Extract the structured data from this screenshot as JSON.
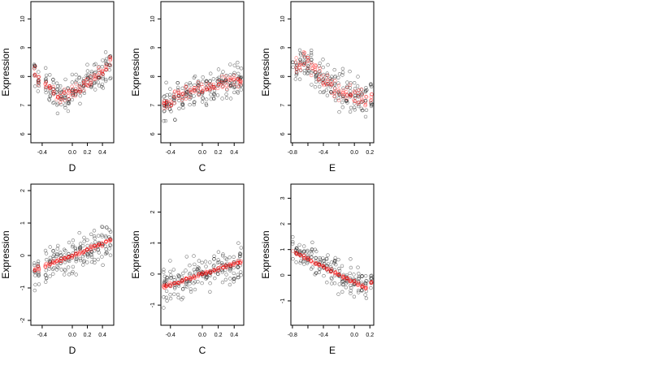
{
  "chart_data": [
    {
      "type": "scatter",
      "xlabel": "D",
      "ylabel": "Expression",
      "xlim": [
        -0.55,
        0.55
      ],
      "ylim": [
        5.7,
        10.6
      ],
      "xticks": [
        -0.4,
        0.0,
        0.2,
        0.4
      ],
      "xtick_labels": [
        "-0.4",
        "0.0",
        "0.2",
        "0.4"
      ],
      "yticks": [
        6,
        7,
        8,
        9,
        10
      ],
      "ytick_labels": [
        "6",
        "7",
        "8",
        "9",
        "10"
      ],
      "observed": {
        "color": "#000000",
        "x_values": [
          -0.5,
          -0.45,
          -0.35,
          -0.3,
          -0.25,
          -0.2,
          -0.15,
          -0.1,
          -0.05,
          0.0,
          0.05,
          0.1,
          0.15,
          0.2,
          0.25,
          0.3,
          0.35,
          0.4,
          0.45,
          0.5
        ],
        "centers": [
          8.1,
          7.9,
          7.7,
          7.6,
          7.5,
          7.3,
          7.3,
          7.3,
          7.4,
          7.5,
          7.6,
          7.6,
          7.7,
          7.8,
          7.9,
          8.0,
          8.1,
          8.2,
          8.3,
          8.5
        ],
        "spread": 0.75
      },
      "fitted": {
        "color": "#ff0000",
        "x_values": [
          -0.5,
          -0.45,
          -0.35,
          -0.3,
          -0.25,
          -0.2,
          -0.15,
          -0.1,
          -0.05,
          0.0,
          0.05,
          0.1,
          0.15,
          0.2,
          0.25,
          0.3,
          0.35,
          0.4,
          0.45,
          0.5
        ],
        "centers": [
          8.1,
          7.9,
          7.7,
          7.6,
          7.5,
          7.3,
          7.3,
          7.3,
          7.4,
          7.5,
          7.6,
          7.6,
          7.7,
          7.8,
          7.9,
          8.0,
          8.1,
          8.2,
          8.3,
          8.5
        ],
        "spread": 0.35
      }
    },
    {
      "type": "scatter",
      "xlabel": "C",
      "ylabel": "Expression",
      "xlim": [
        -0.52,
        0.52
      ],
      "ylim": [
        5.7,
        10.6
      ],
      "xticks": [
        -0.4,
        0.0,
        0.2,
        0.4
      ],
      "xtick_labels": [
        "-0.4",
        "0.0",
        "0.2",
        "0.4"
      ],
      "yticks": [
        6,
        7,
        8,
        9,
        10
      ],
      "ytick_labels": [
        "6",
        "7",
        "8",
        "9",
        "10"
      ],
      "observed": {
        "color": "#000000",
        "x_values": [
          -0.48,
          -0.45,
          -0.4,
          -0.35,
          -0.3,
          -0.25,
          -0.2,
          -0.15,
          -0.1,
          -0.05,
          0.0,
          0.05,
          0.1,
          0.15,
          0.2,
          0.25,
          0.3,
          0.35,
          0.4,
          0.45,
          0.48
        ],
        "centers": [
          7.0,
          7.05,
          7.1,
          7.2,
          7.3,
          7.35,
          7.4,
          7.45,
          7.5,
          7.5,
          7.55,
          7.6,
          7.6,
          7.65,
          7.7,
          7.7,
          7.75,
          7.8,
          7.85,
          7.9,
          7.9
        ],
        "spread": 0.8
      },
      "fitted": {
        "color": "#ff0000",
        "x_values": [
          -0.48,
          -0.45,
          -0.4,
          -0.35,
          -0.3,
          -0.25,
          -0.2,
          -0.15,
          -0.1,
          -0.05,
          0.0,
          0.05,
          0.1,
          0.15,
          0.2,
          0.25,
          0.3,
          0.35,
          0.4,
          0.45,
          0.48
        ],
        "centers": [
          7.0,
          7.05,
          7.1,
          7.2,
          7.3,
          7.35,
          7.4,
          7.45,
          7.5,
          7.5,
          7.55,
          7.6,
          7.6,
          7.65,
          7.7,
          7.7,
          7.75,
          7.8,
          7.85,
          7.9,
          7.9
        ],
        "spread": 0.35
      }
    },
    {
      "type": "scatter",
      "xlabel": "E",
      "ylabel": "Expression",
      "xlim": [
        -0.82,
        0.25
      ],
      "ylim": [
        5.7,
        10.6
      ],
      "xticks": [
        -0.8,
        -0.6,
        -0.4,
        -0.2,
        0.0,
        0.2
      ],
      "xtick_labels": [
        "-0.8",
        "",
        "-0.4",
        "",
        "0.0",
        "0.2"
      ],
      "yticks": [
        6,
        7,
        8,
        9,
        10
      ],
      "ytick_labels": [
        "6",
        "7",
        "8",
        "9",
        "10"
      ],
      "observed": {
        "color": "#000000",
        "x_values": [
          -0.8,
          -0.75,
          -0.7,
          -0.65,
          -0.6,
          -0.55,
          -0.5,
          -0.45,
          -0.4,
          -0.35,
          -0.3,
          -0.25,
          -0.2,
          -0.15,
          -0.1,
          -0.05,
          0.0,
          0.05,
          0.1,
          0.15,
          0.22
        ],
        "centers": [
          8.3,
          8.4,
          8.5,
          8.6,
          8.5,
          8.3,
          8.2,
          8.0,
          7.9,
          7.8,
          7.7,
          7.6,
          7.5,
          7.5,
          7.4,
          7.4,
          7.3,
          7.3,
          7.3,
          7.2,
          7.3
        ],
        "spread": 0.9
      },
      "fitted": {
        "color": "#ff0000",
        "x_values": [
          -0.8,
          -0.75,
          -0.7,
          -0.65,
          -0.6,
          -0.55,
          -0.5,
          -0.45,
          -0.4,
          -0.35,
          -0.3,
          -0.25,
          -0.2,
          -0.15,
          -0.1,
          -0.05,
          0.0,
          0.05,
          0.1,
          0.15,
          0.22
        ],
        "centers": [
          8.3,
          8.4,
          8.5,
          8.6,
          8.5,
          8.3,
          8.2,
          8.0,
          7.9,
          7.8,
          7.7,
          7.6,
          7.5,
          7.5,
          7.4,
          7.4,
          7.3,
          7.3,
          7.3,
          7.2,
          7.3
        ],
        "spread": 0.4
      }
    },
    {
      "type": "scatter",
      "xlabel": "D",
      "ylabel": "Expression",
      "xlim": [
        -0.55,
        0.55
      ],
      "ylim": [
        -2.15,
        2.2
      ],
      "xticks": [
        -0.4,
        0.0,
        0.2,
        0.4
      ],
      "xtick_labels": [
        "-0.4",
        "0.0",
        "0.2",
        "0.4"
      ],
      "yticks": [
        -2,
        -1,
        0,
        1,
        2
      ],
      "ytick_labels": [
        "-2",
        "-1",
        "0",
        "1",
        "2"
      ],
      "observed": {
        "color": "#000000",
        "x_values": [
          -0.5,
          -0.45,
          -0.35,
          -0.3,
          -0.25,
          -0.2,
          -0.15,
          -0.1,
          -0.05,
          0.0,
          0.05,
          0.1,
          0.15,
          0.2,
          0.25,
          0.3,
          0.35,
          0.4,
          0.45,
          0.5
        ],
        "centers": [
          -0.45,
          -0.4,
          -0.3,
          -0.27,
          -0.22,
          -0.18,
          -0.14,
          -0.09,
          -0.05,
          0.0,
          0.05,
          0.09,
          0.14,
          0.18,
          0.22,
          0.27,
          0.31,
          0.36,
          0.4,
          0.45
        ],
        "spread": 0.9
      },
      "fitted": {
        "color": "#ff0000",
        "x_values": [
          -0.5,
          -0.45,
          -0.35,
          -0.3,
          -0.25,
          -0.2,
          -0.15,
          -0.1,
          -0.05,
          0.0,
          0.05,
          0.1,
          0.15,
          0.2,
          0.25,
          0.3,
          0.35,
          0.4,
          0.45,
          0.5
        ],
        "centers": [
          -0.45,
          -0.4,
          -0.3,
          -0.27,
          -0.22,
          -0.18,
          -0.14,
          -0.09,
          -0.05,
          0.0,
          0.05,
          0.09,
          0.14,
          0.18,
          0.22,
          0.27,
          0.31,
          0.36,
          0.4,
          0.45
        ],
        "spread": 0.1
      }
    },
    {
      "type": "scatter",
      "xlabel": "C",
      "ylabel": "Expression",
      "xlim": [
        -0.52,
        0.52
      ],
      "ylim": [
        -1.65,
        2.9
      ],
      "xticks": [
        -0.4,
        0.0,
        0.2,
        0.4
      ],
      "xtick_labels": [
        "-0.4",
        "0.0",
        "0.2",
        "0.4"
      ],
      "yticks": [
        -1,
        0,
        1,
        2
      ],
      "ytick_labels": [
        "-1",
        "0",
        "1",
        "2"
      ],
      "observed": {
        "color": "#000000",
        "x_values": [
          -0.48,
          -0.45,
          -0.4,
          -0.35,
          -0.3,
          -0.25,
          -0.2,
          -0.15,
          -0.1,
          -0.05,
          0.0,
          0.05,
          0.1,
          0.15,
          0.2,
          0.25,
          0.3,
          0.35,
          0.4,
          0.45,
          0.48
        ],
        "centers": [
          -0.4,
          -0.38,
          -0.33,
          -0.29,
          -0.25,
          -0.2,
          -0.16,
          -0.12,
          -0.08,
          -0.04,
          0.0,
          0.04,
          0.08,
          0.12,
          0.17,
          0.21,
          0.25,
          0.29,
          0.33,
          0.37,
          0.4
        ],
        "spread": 0.75
      },
      "fitted": {
        "color": "#ff0000",
        "x_values": [
          -0.48,
          -0.45,
          -0.4,
          -0.35,
          -0.3,
          -0.25,
          -0.2,
          -0.15,
          -0.1,
          -0.05,
          0.0,
          0.05,
          0.1,
          0.15,
          0.2,
          0.25,
          0.3,
          0.35,
          0.4,
          0.45,
          0.48
        ],
        "centers": [
          -0.4,
          -0.38,
          -0.33,
          -0.29,
          -0.25,
          -0.2,
          -0.16,
          -0.12,
          -0.08,
          -0.04,
          0.0,
          0.04,
          0.08,
          0.12,
          0.17,
          0.21,
          0.25,
          0.29,
          0.33,
          0.37,
          0.4
        ],
        "spread": 0.08
      }
    },
    {
      "type": "scatter",
      "xlabel": "E",
      "ylabel": "Expression",
      "xlim": [
        -0.82,
        0.25
      ],
      "ylim": [
        -1.95,
        3.55
      ],
      "xticks": [
        -0.8,
        -0.6,
        -0.4,
        -0.2,
        0.0,
        0.2
      ],
      "xtick_labels": [
        "-0.8",
        "",
        "-0.4",
        "",
        "0.0",
        "0.2"
      ],
      "yticks": [
        -1,
        0,
        1,
        2,
        3
      ],
      "ytick_labels": [
        "-1",
        "0",
        "1",
        "2",
        "3"
      ],
      "observed": {
        "color": "#000000",
        "x_values": [
          -0.8,
          -0.75,
          -0.7,
          -0.65,
          -0.6,
          -0.55,
          -0.5,
          -0.45,
          -0.4,
          -0.35,
          -0.3,
          -0.25,
          -0.2,
          -0.15,
          -0.1,
          -0.05,
          0.0,
          0.05,
          0.1,
          0.15,
          0.22
        ],
        "centers": [
          0.9,
          0.85,
          0.78,
          0.7,
          0.62,
          0.55,
          0.48,
          0.4,
          0.33,
          0.25,
          0.18,
          0.1,
          0.03,
          -0.05,
          -0.12,
          -0.2,
          -0.27,
          -0.35,
          -0.42,
          -0.5,
          -0.3
        ],
        "spread": 0.85
      },
      "fitted": {
        "color": "#ff0000",
        "x_values": [
          -0.8,
          -0.75,
          -0.7,
          -0.65,
          -0.6,
          -0.55,
          -0.5,
          -0.45,
          -0.4,
          -0.35,
          -0.3,
          -0.25,
          -0.2,
          -0.15,
          -0.1,
          -0.05,
          0.0,
          0.05,
          0.1,
          0.15,
          0.22
        ],
        "centers": [
          0.9,
          0.85,
          0.78,
          0.7,
          0.62,
          0.55,
          0.48,
          0.4,
          0.33,
          0.25,
          0.18,
          0.1,
          0.03,
          -0.05,
          -0.12,
          -0.2,
          -0.27,
          -0.35,
          -0.42,
          -0.5,
          -0.3
        ],
        "spread": 0.08
      }
    }
  ]
}
